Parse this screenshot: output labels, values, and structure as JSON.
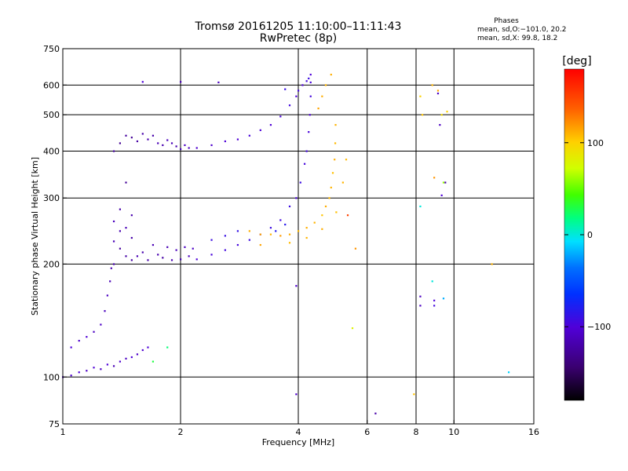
{
  "header": {
    "title_line1": "Tromsø 20161205 11:10:00–11:11:43",
    "title_line2": "RwPretec (8p)"
  },
  "phase_stats": {
    "heading": "Phases",
    "line_o": "mean, sd,O:−101.0, 20.2",
    "line_x": "mean, sd,X:  99.8, 18.2"
  },
  "colorbar": {
    "label": "[deg]",
    "range": [
      -180,
      180
    ],
    "ticks": [
      {
        "value": 100,
        "label": "100"
      },
      {
        "value": 0,
        "label": "0"
      },
      {
        "value": -100,
        "label": "−100"
      }
    ]
  },
  "chart_data": {
    "type": "scatter",
    "title": "Tromsø 20161205 11:10:00–11:11:43",
    "subtitle": "RwPretec (8p)",
    "xlabel": "Frequency [MHz]",
    "ylabel": "Stationary phase Virtual Height [km]",
    "x_scale": "log",
    "y_scale": "log",
    "xlim": [
      1,
      16
    ],
    "ylim": [
      75,
      750
    ],
    "x_ticks": [
      1,
      2,
      4,
      6,
      8,
      10,
      16
    ],
    "y_ticks": [
      75,
      100,
      200,
      300,
      400,
      500,
      600,
      750
    ],
    "x_gridlines": [
      2,
      4,
      6,
      8,
      10
    ],
    "y_gridlines": [
      100,
      200,
      300,
      400,
      500,
      600
    ],
    "grid": true,
    "color_variable": "phase (deg)",
    "color_range": [
      -180,
      180
    ],
    "series": [
      {
        "name": "O",
        "points": [
          [
            1.0,
            100,
            -110
          ],
          [
            1.05,
            101,
            -105
          ],
          [
            1.1,
            103,
            -100
          ],
          [
            1.15,
            104,
            -108
          ],
          [
            1.2,
            106,
            -102
          ],
          [
            1.25,
            105,
            -110
          ],
          [
            1.3,
            108,
            -100
          ],
          [
            1.35,
            107,
            -115
          ],
          [
            1.4,
            110,
            -105
          ],
          [
            1.45,
            112,
            -110
          ],
          [
            1.5,
            113,
            -100
          ],
          [
            1.55,
            115,
            -108
          ],
          [
            1.6,
            118,
            -104
          ],
          [
            1.65,
            120,
            -100
          ],
          [
            1.05,
            120,
            -100
          ],
          [
            1.1,
            125,
            -105
          ],
          [
            1.15,
            128,
            -102
          ],
          [
            1.2,
            132,
            -110
          ],
          [
            1.25,
            138,
            -108
          ],
          [
            1.28,
            150,
            -112
          ],
          [
            1.3,
            165,
            -110
          ],
          [
            1.32,
            180,
            -115
          ],
          [
            1.33,
            195,
            -118
          ],
          [
            1.35,
            200,
            -120
          ],
          [
            1.35,
            230,
            -115
          ],
          [
            1.35,
            260,
            -112
          ],
          [
            1.4,
            220,
            -125
          ],
          [
            1.4,
            245,
            -118
          ],
          [
            1.4,
            280,
            -120
          ],
          [
            1.45,
            210,
            -122
          ],
          [
            1.45,
            250,
            -115
          ],
          [
            1.45,
            330,
            -128
          ],
          [
            1.5,
            205,
            -125
          ],
          [
            1.5,
            235,
            -120
          ],
          [
            1.5,
            270,
            -118
          ],
          [
            1.55,
            210,
            -115
          ],
          [
            1.6,
            215,
            -118
          ],
          [
            1.65,
            205,
            -120
          ],
          [
            1.7,
            225,
            -115
          ],
          [
            1.75,
            212,
            -118
          ],
          [
            1.8,
            208,
            -122
          ],
          [
            1.85,
            222,
            -116
          ],
          [
            1.9,
            205,
            -118
          ],
          [
            1.95,
            218,
            -112
          ],
          [
            2.0,
            206,
            -115
          ],
          [
            2.05,
            222,
            -110
          ],
          [
            2.1,
            210,
            -112
          ],
          [
            2.15,
            220,
            -108
          ],
          [
            1.35,
            400,
            -125
          ],
          [
            1.4,
            420,
            -130
          ],
          [
            1.45,
            440,
            -125
          ],
          [
            1.5,
            435,
            -128
          ],
          [
            1.55,
            425,
            -122
          ],
          [
            1.6,
            445,
            -120
          ],
          [
            1.65,
            430,
            -118
          ],
          [
            1.7,
            440,
            -120
          ],
          [
            1.75,
            420,
            -115
          ],
          [
            1.8,
            415,
            -118
          ],
          [
            1.85,
            428,
            -112
          ],
          [
            1.9,
            420,
            -115
          ],
          [
            1.95,
            412,
            -118
          ],
          [
            2.0,
            405,
            -110
          ],
          [
            2.05,
            415,
            -108
          ],
          [
            2.1,
            408,
            -112
          ],
          [
            2.2,
            408,
            -105
          ],
          [
            2.4,
            415,
            -105
          ],
          [
            2.6,
            425,
            -100
          ],
          [
            2.8,
            430,
            -102
          ],
          [
            3.0,
            440,
            -98
          ],
          [
            3.2,
            455,
            -100
          ],
          [
            3.4,
            470,
            -102
          ],
          [
            3.6,
            495,
            -98
          ],
          [
            3.8,
            530,
            -95
          ],
          [
            3.95,
            560,
            -100
          ],
          [
            4.0,
            580,
            -96
          ],
          [
            4.1,
            600,
            -100
          ],
          [
            4.2,
            615,
            -95
          ],
          [
            4.25,
            625,
            -92
          ],
          [
            4.3,
            610,
            -98
          ],
          [
            2.2,
            206,
            -100
          ],
          [
            2.4,
            212,
            -98
          ],
          [
            2.6,
            218,
            -95
          ],
          [
            2.8,
            225,
            -96
          ],
          [
            3.0,
            232,
            -92
          ],
          [
            3.2,
            240,
            -95
          ],
          [
            3.4,
            250,
            -92
          ],
          [
            3.6,
            262,
            -95
          ],
          [
            3.8,
            285,
            -92
          ],
          [
            3.95,
            300,
            -98
          ],
          [
            4.05,
            330,
            -92
          ],
          [
            4.15,
            370,
            -96
          ],
          [
            4.2,
            400,
            -95
          ],
          [
            4.25,
            450,
            -98
          ],
          [
            4.28,
            500,
            -100
          ],
          [
            4.3,
            560,
            -96
          ],
          [
            4.3,
            640,
            -100
          ],
          [
            2.4,
            232,
            -92
          ],
          [
            2.6,
            238,
            -90
          ],
          [
            2.8,
            245,
            -88
          ],
          [
            3.5,
            245,
            -80
          ],
          [
            3.7,
            255,
            -82
          ]
        ]
      },
      {
        "name": "X",
        "points": [
          [
            3.2,
            240,
            115
          ],
          [
            3.4,
            240,
            110
          ],
          [
            3.6,
            238,
            118
          ],
          [
            3.8,
            240,
            112
          ],
          [
            4.0,
            245,
            108
          ],
          [
            4.2,
            250,
            112
          ],
          [
            4.4,
            258,
            110
          ],
          [
            4.6,
            270,
            105
          ],
          [
            4.7,
            285,
            112
          ],
          [
            4.8,
            300,
            108
          ],
          [
            4.85,
            320,
            110
          ],
          [
            4.9,
            350,
            106
          ],
          [
            4.95,
            380,
            112
          ],
          [
            4.97,
            420,
            108
          ],
          [
            4.98,
            470,
            110
          ],
          [
            4.5,
            520,
            115
          ],
          [
            4.6,
            560,
            112
          ],
          [
            4.7,
            600,
            110
          ],
          [
            4.85,
            640,
            112
          ],
          [
            3.0,
            245,
            112
          ],
          [
            3.2,
            225,
            115
          ],
          [
            3.8,
            228,
            108
          ],
          [
            4.2,
            235,
            110
          ],
          [
            4.6,
            248,
            112
          ],
          [
            5.0,
            275,
            106
          ],
          [
            5.2,
            330,
            110
          ],
          [
            5.3,
            380,
            108
          ],
          [
            5.35,
            270,
            150
          ],
          [
            5.6,
            220,
            120
          ],
          [
            8.2,
            560,
            100
          ],
          [
            8.3,
            500,
            105
          ],
          [
            8.8,
            600,
            110
          ],
          [
            8.9,
            340,
            120
          ],
          [
            9.1,
            580,
            115
          ],
          [
            9.3,
            500,
            95
          ],
          [
            9.4,
            330,
            60
          ],
          [
            9.6,
            510,
            100
          ],
          [
            12.5,
            200,
            110
          ],
          [
            5.5,
            135,
            80
          ],
          [
            7.9,
            90,
            105
          ]
        ]
      },
      {
        "name": "scattered",
        "points": [
          [
            1.6,
            612,
            -100
          ],
          [
            2.0,
            612,
            -115
          ],
          [
            2.5,
            610,
            -110
          ],
          [
            3.7,
            585,
            -90
          ],
          [
            3.95,
            175,
            -105
          ],
          [
            3.95,
            90,
            -105
          ],
          [
            6.3,
            80,
            -120
          ],
          [
            8.2,
            285,
            0
          ],
          [
            8.2,
            164,
            -110
          ],
          [
            8.2,
            155,
            -110
          ],
          [
            8.9,
            160,
            -100
          ],
          [
            8.9,
            155,
            -95
          ],
          [
            9.1,
            570,
            -110
          ],
          [
            9.2,
            470,
            -110
          ],
          [
            9.3,
            305,
            -100
          ],
          [
            9.4,
            162,
            -20
          ],
          [
            9.5,
            330,
            -120
          ],
          [
            13.8,
            103,
            -10
          ],
          [
            8.8,
            180,
            0
          ],
          [
            1.85,
            120,
            20
          ],
          [
            1.7,
            110,
            30
          ]
        ]
      }
    ]
  }
}
